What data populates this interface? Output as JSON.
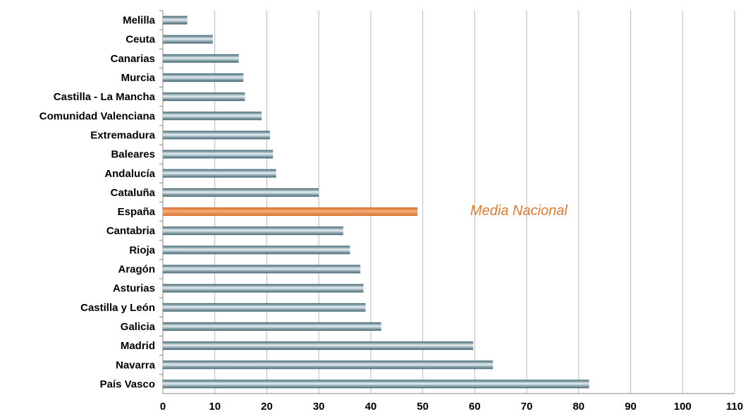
{
  "chart_data": {
    "type": "bar",
    "orientation": "horizontal",
    "categories": [
      "Melilla",
      "Ceuta",
      "Canarias",
      "Murcia",
      "Castilla - La Mancha",
      "Comunidad Valenciana",
      "Extremadura",
      "Baleares",
      "Andalucía",
      "Cataluña",
      "España",
      "Cantabria",
      "Rioja",
      "Aragón",
      "Asturias",
      "Castilla y León",
      "Galicia",
      "Madrid",
      "Navarra",
      "País Vasco"
    ],
    "values": [
      4.7,
      9.6,
      14.6,
      15.5,
      15.8,
      19.0,
      20.6,
      21.2,
      21.8,
      30.0,
      49.0,
      34.7,
      36.0,
      38.0,
      38.6,
      39.0,
      42.0,
      59.7,
      63.5,
      82.0
    ],
    "highlight_category": "España",
    "xlim": [
      0,
      110
    ],
    "xticks": [
      0,
      10,
      20,
      30,
      40,
      50,
      60,
      70,
      80,
      90,
      100,
      110
    ],
    "grid": true,
    "annotation": "Media Nacional",
    "title": "",
    "xlabel": "",
    "ylabel": ""
  },
  "colors": {
    "bar_dark": "#3f6470",
    "bar_light": "#e4eef2",
    "highlight": "#d9692a",
    "highlight_light": "#f6b07a",
    "grid": "#b8b8b8",
    "annotation": "#e07a2e",
    "axis": "#888888"
  }
}
